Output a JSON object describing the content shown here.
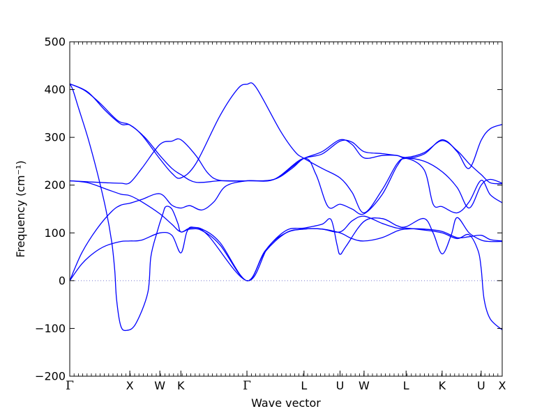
{
  "chart_data": {
    "type": "line",
    "title": "",
    "xlabel": "Wave vector",
    "ylabel": "Frequency (cm⁻¹)",
    "ylim": [
      -200,
      500
    ],
    "yticks": [
      -200,
      -100,
      0,
      100,
      200,
      300,
      400,
      500
    ],
    "grid": false,
    "legend": "none",
    "line_color": "#0000ff",
    "zero_line_color": "#7777cc",
    "xlim": [
      0,
      7.2
    ],
    "symmetry_points": [
      {
        "label": "Γ",
        "x": 0.0
      },
      {
        "label": "X",
        "x": 1.0
      },
      {
        "label": "W",
        "x": 1.5
      },
      {
        "label": "K",
        "x": 1.85
      },
      {
        "label": "Γ",
        "x": 2.95
      },
      {
        "label": "L",
        "x": 3.9
      },
      {
        "label": "U",
        "x": 4.5
      },
      {
        "label": "W",
        "x": 4.9
      },
      {
        "label": "L",
        "x": 5.6
      },
      {
        "label": "K",
        "x": 6.2
      },
      {
        "label": "U",
        "x": 6.85
      },
      {
        "label": "X",
        "x": 7.2
      }
    ],
    "series": [
      {
        "values": [
          [
            0,
            412
          ],
          [
            0.3,
            395
          ],
          [
            0.6,
            355
          ],
          [
            0.85,
            328
          ],
          [
            1.0,
            326
          ],
          [
            1.2,
            305
          ],
          [
            1.5,
            255
          ],
          [
            1.7,
            225
          ],
          [
            1.85,
            215
          ],
          [
            2.1,
            245
          ],
          [
            2.5,
            345
          ],
          [
            2.8,
            402
          ],
          [
            2.95,
            411
          ],
          [
            3.1,
            405
          ],
          [
            3.5,
            315
          ],
          [
            3.75,
            270
          ],
          [
            3.9,
            256
          ],
          [
            4.2,
            235
          ],
          [
            4.5,
            215
          ],
          [
            4.7,
            185
          ],
          [
            4.9,
            142
          ],
          [
            5.2,
            190
          ],
          [
            5.45,
            245
          ],
          [
            5.6,
            256
          ],
          [
            5.9,
            250
          ],
          [
            6.2,
            228
          ],
          [
            6.45,
            195
          ],
          [
            6.65,
            152
          ],
          [
            6.85,
            200
          ],
          [
            7.0,
            212
          ],
          [
            7.2,
            204
          ]
        ]
      },
      {
        "values": [
          [
            0,
            412
          ],
          [
            0.25,
            398
          ],
          [
            0.5,
            372
          ],
          [
            0.8,
            335
          ],
          [
            1.0,
            326
          ],
          [
            1.25,
            300
          ],
          [
            1.5,
            262
          ],
          [
            1.7,
            235
          ],
          [
            1.85,
            222
          ],
          [
            2.1,
            206
          ],
          [
            2.5,
            209
          ],
          [
            2.95,
            209
          ],
          [
            3.4,
            212
          ],
          [
            3.7,
            235
          ],
          [
            3.9,
            256
          ],
          [
            4.2,
            265
          ],
          [
            4.5,
            292
          ],
          [
            4.7,
            290
          ],
          [
            4.9,
            270
          ],
          [
            5.2,
            266
          ],
          [
            5.45,
            262
          ],
          [
            5.6,
            258
          ],
          [
            5.9,
            268
          ],
          [
            6.2,
            293
          ],
          [
            6.45,
            272
          ],
          [
            6.65,
            245
          ],
          [
            6.85,
            222
          ],
          [
            7.0,
            205
          ],
          [
            7.2,
            203
          ]
        ]
      },
      {
        "values": [
          [
            0,
            412
          ],
          [
            0.05,
            400
          ],
          [
            0.15,
            360
          ],
          [
            0.3,
            300
          ],
          [
            0.45,
            230
          ],
          [
            0.6,
            150
          ],
          [
            0.7,
            80
          ],
          [
            0.75,
            20
          ],
          [
            0.78,
            -40
          ],
          [
            0.85,
            -95
          ],
          [
            0.95,
            -104
          ],
          [
            1.1,
            -90
          ],
          [
            1.3,
            -25
          ],
          [
            1.35,
            50
          ],
          [
            1.45,
            100
          ],
          [
            1.55,
            140
          ],
          [
            1.6,
            155
          ],
          [
            1.7,
            150
          ],
          [
            1.8,
            120
          ],
          [
            1.85,
            102
          ],
          [
            2.0,
            108
          ],
          [
            2.2,
            105
          ],
          [
            2.5,
            75
          ],
          [
            2.95,
            0
          ],
          [
            3.25,
            60
          ],
          [
            3.6,
            100
          ],
          [
            3.9,
            108
          ],
          [
            4.2,
            108
          ],
          [
            4.5,
            102
          ],
          [
            4.7,
            125
          ],
          [
            4.9,
            135
          ],
          [
            5.2,
            120
          ],
          [
            5.45,
            110
          ],
          [
            5.6,
            110
          ],
          [
            5.9,
            106
          ],
          [
            6.2,
            100
          ],
          [
            6.45,
            88
          ],
          [
            6.65,
            96
          ],
          [
            6.8,
            62
          ],
          [
            6.85,
            25
          ],
          [
            6.9,
            -40
          ],
          [
            7.0,
            -80
          ],
          [
            7.2,
            -103
          ]
        ]
      },
      {
        "values": [
          [
            0,
            209
          ],
          [
            0.3,
            207
          ],
          [
            0.6,
            205
          ],
          [
            0.85,
            204
          ],
          [
            1.0,
            205
          ],
          [
            1.2,
            235
          ],
          [
            1.5,
            285
          ],
          [
            1.7,
            292
          ],
          [
            1.85,
            295
          ],
          [
            2.1,
            262
          ],
          [
            2.3,
            225
          ],
          [
            2.5,
            210
          ],
          [
            2.95,
            209
          ],
          [
            3.4,
            212
          ],
          [
            3.7,
            238
          ],
          [
            3.9,
            256
          ],
          [
            4.2,
            270
          ],
          [
            4.5,
            295
          ],
          [
            4.7,
            285
          ],
          [
            4.9,
            257
          ],
          [
            5.2,
            262
          ],
          [
            5.45,
            262
          ],
          [
            5.6,
            256
          ],
          [
            5.9,
            265
          ],
          [
            6.2,
            295
          ],
          [
            6.45,
            270
          ],
          [
            6.65,
            235
          ],
          [
            6.85,
            294
          ],
          [
            7.0,
            318
          ],
          [
            7.2,
            327
          ]
        ]
      },
      {
        "values": [
          [
            0,
            209
          ],
          [
            0.3,
            205
          ],
          [
            0.6,
            192
          ],
          [
            0.85,
            181
          ],
          [
            1.0,
            178
          ],
          [
            1.2,
            165
          ],
          [
            1.5,
            140
          ],
          [
            1.7,
            118
          ],
          [
            1.85,
            102
          ],
          [
            2.0,
            110
          ],
          [
            2.2,
            108
          ],
          [
            2.5,
            80
          ],
          [
            2.95,
            0
          ],
          [
            3.25,
            62
          ],
          [
            3.6,
            105
          ],
          [
            3.9,
            110
          ],
          [
            4.2,
            118
          ],
          [
            4.35,
            128
          ],
          [
            4.45,
            75
          ],
          [
            4.5,
            55
          ],
          [
            4.6,
            72
          ],
          [
            4.9,
            124
          ],
          [
            5.2,
            130
          ],
          [
            5.45,
            115
          ],
          [
            5.6,
            113
          ],
          [
            5.9,
            130
          ],
          [
            6.05,
            100
          ],
          [
            6.2,
            56
          ],
          [
            6.35,
            95
          ],
          [
            6.45,
            132
          ],
          [
            6.65,
            100
          ],
          [
            6.85,
            85
          ],
          [
            7.0,
            82
          ],
          [
            7.2,
            82
          ]
        ]
      },
      {
        "values": [
          [
            0,
            0
          ],
          [
            0.2,
            35
          ],
          [
            0.4,
            58
          ],
          [
            0.6,
            73
          ],
          [
            0.85,
            82
          ],
          [
            1.0,
            83
          ],
          [
            1.2,
            85
          ],
          [
            1.5,
            100
          ],
          [
            1.7,
            95
          ],
          [
            1.85,
            58
          ],
          [
            1.95,
            102
          ],
          [
            2.05,
            112
          ],
          [
            2.3,
            95
          ],
          [
            2.95,
            0
          ],
          [
            3.3,
            70
          ],
          [
            3.6,
            100
          ],
          [
            3.9,
            108
          ],
          [
            4.2,
            108
          ],
          [
            4.5,
            100
          ],
          [
            4.7,
            88
          ],
          [
            4.9,
            83
          ],
          [
            5.2,
            90
          ],
          [
            5.45,
            104
          ],
          [
            5.6,
            108
          ],
          [
            5.9,
            108
          ],
          [
            6.2,
            103
          ],
          [
            6.45,
            90
          ],
          [
            6.65,
            92
          ],
          [
            6.85,
            95
          ],
          [
            7.0,
            86
          ],
          [
            7.2,
            83
          ]
        ]
      },
      {
        "values": [
          [
            0,
            0
          ],
          [
            0.2,
            58
          ],
          [
            0.45,
            108
          ],
          [
            0.7,
            145
          ],
          [
            0.85,
            158
          ],
          [
            1.0,
            162
          ],
          [
            1.2,
            170
          ],
          [
            1.5,
            182
          ],
          [
            1.7,
            158
          ],
          [
            1.85,
            152
          ],
          [
            2.0,
            157
          ],
          [
            2.2,
            148
          ],
          [
            2.4,
            165
          ],
          [
            2.6,
            198
          ],
          [
            2.95,
            209
          ],
          [
            3.4,
            212
          ],
          [
            3.9,
            256
          ],
          [
            4.1,
            222
          ],
          [
            4.3,
            155
          ],
          [
            4.5,
            160
          ],
          [
            4.7,
            150
          ],
          [
            4.9,
            140
          ],
          [
            5.2,
            180
          ],
          [
            5.45,
            240
          ],
          [
            5.6,
            256
          ],
          [
            5.9,
            232
          ],
          [
            6.05,
            160
          ],
          [
            6.2,
            155
          ],
          [
            6.45,
            142
          ],
          [
            6.65,
            165
          ],
          [
            6.85,
            210
          ],
          [
            7.0,
            180
          ],
          [
            7.2,
            163
          ]
        ]
      }
    ]
  }
}
